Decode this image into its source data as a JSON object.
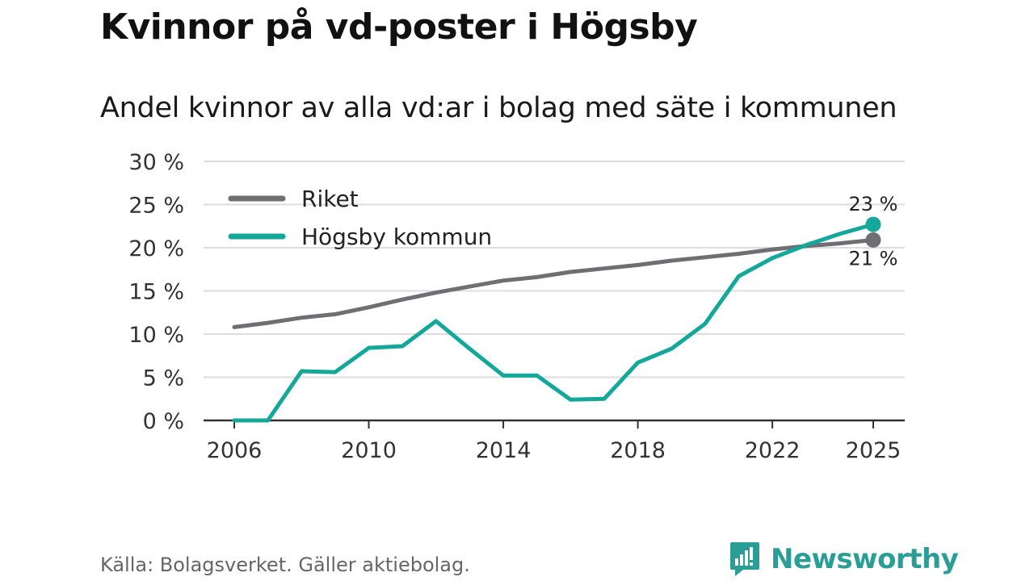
{
  "title": "Kvinnor på vd-poster i Högsby",
  "subtitle": "Andel kvinnor av alla vd:ar i bolag med säte i kommunen",
  "source": "Källa: Bolagsverket. Gäller aktiebolag.",
  "brand": "Newsworthy",
  "colors": {
    "riket": "#6f6e73",
    "hogsby": "#14a89b",
    "grid": "#dddddd",
    "axis": "#333333",
    "brand": "#2a9d96"
  },
  "chart_data": {
    "type": "line",
    "x": [
      2006,
      2007,
      2008,
      2009,
      2010,
      2011,
      2012,
      2013,
      2014,
      2015,
      2016,
      2017,
      2018,
      2019,
      2020,
      2021,
      2022,
      2023,
      2024,
      2025
    ],
    "series": [
      {
        "name": "Riket",
        "color_key": "riket",
        "values": [
          10.8,
          11.3,
          11.9,
          12.3,
          13.1,
          14.0,
          14.8,
          15.5,
          16.2,
          16.6,
          17.2,
          17.6,
          18.0,
          18.5,
          18.9,
          19.3,
          19.8,
          20.2,
          20.5,
          20.9
        ],
        "end_label": "21 %"
      },
      {
        "name": "Högsby kommun",
        "color_key": "hogsby",
        "values": [
          0,
          0,
          5.7,
          5.6,
          8.4,
          8.6,
          11.5,
          8.3,
          5.2,
          5.2,
          2.4,
          2.5,
          6.7,
          8.3,
          11.2,
          16.7,
          18.8,
          20.3,
          21.6,
          22.7
        ],
        "end_label": "23 %"
      }
    ],
    "xticks": [
      2006,
      2010,
      2014,
      2018,
      2022,
      2025
    ],
    "yticks": [
      0,
      5,
      10,
      15,
      20,
      25,
      30
    ],
    "ytick_labels": [
      "0 %",
      "5 %",
      "10 %",
      "15 %",
      "20 %",
      "25 %",
      "30 %"
    ],
    "xlim": [
      2006,
      2025
    ],
    "ylim": [
      0,
      30
    ],
    "grid": true,
    "legend": [
      "Riket",
      "Högsby kommun"
    ],
    "legend_position": "top-left"
  }
}
